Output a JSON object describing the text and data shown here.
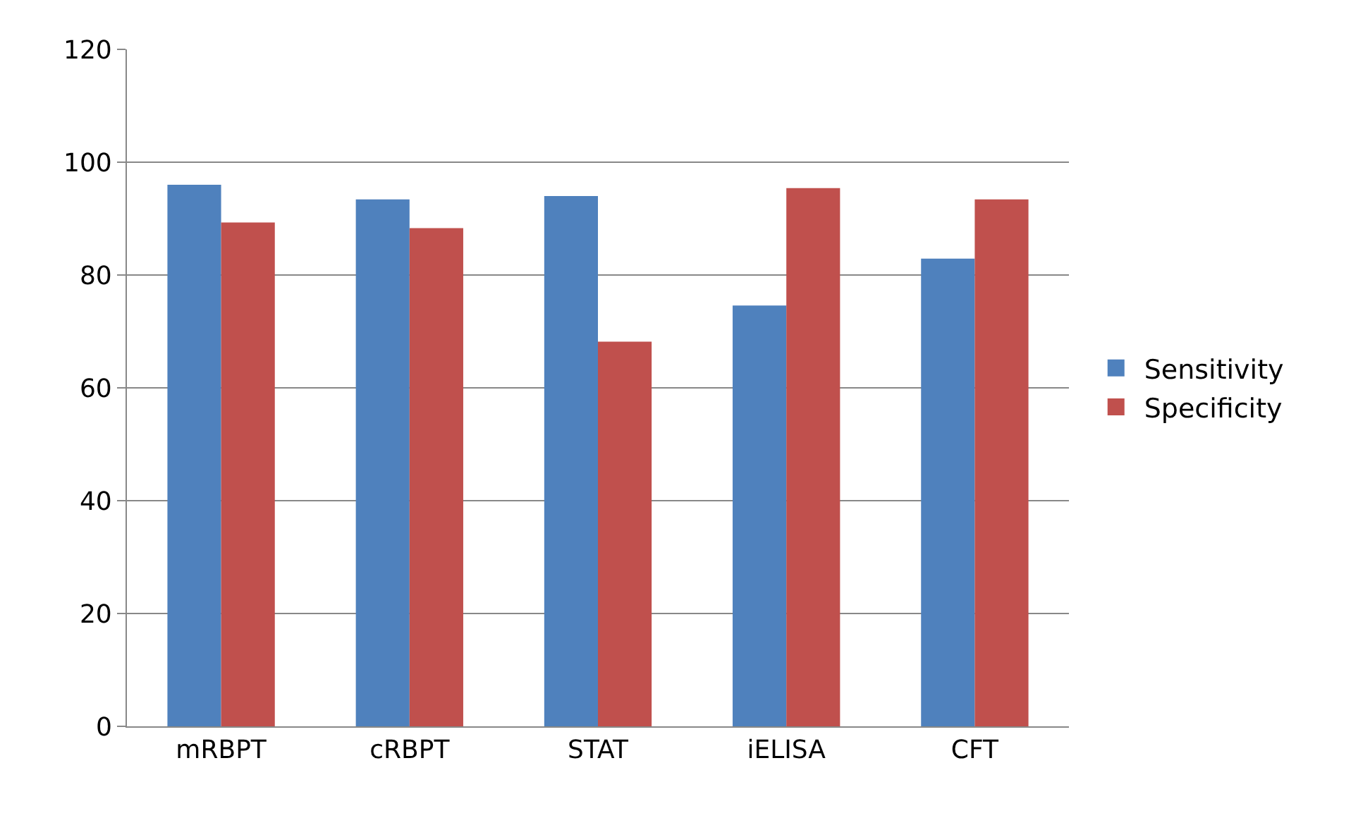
{
  "chart_data": {
    "type": "bar",
    "categories": [
      "mRBPT",
      "cRBPT",
      "STAT",
      "iELISA",
      "CFT"
    ],
    "series": [
      {
        "name": "Sensitivity",
        "color": "#4f81bd",
        "values": [
          96.0,
          93.4,
          94.0,
          74.6,
          82.9
        ]
      },
      {
        "name": "Specificity",
        "color": "#c0504d",
        "values": [
          89.3,
          88.3,
          68.2,
          95.4,
          93.4
        ]
      }
    ],
    "ylim": [
      0,
      120
    ],
    "yticks": [
      0,
      20,
      40,
      60,
      80,
      100,
      120
    ],
    "grid": "y",
    "legend": "right"
  }
}
